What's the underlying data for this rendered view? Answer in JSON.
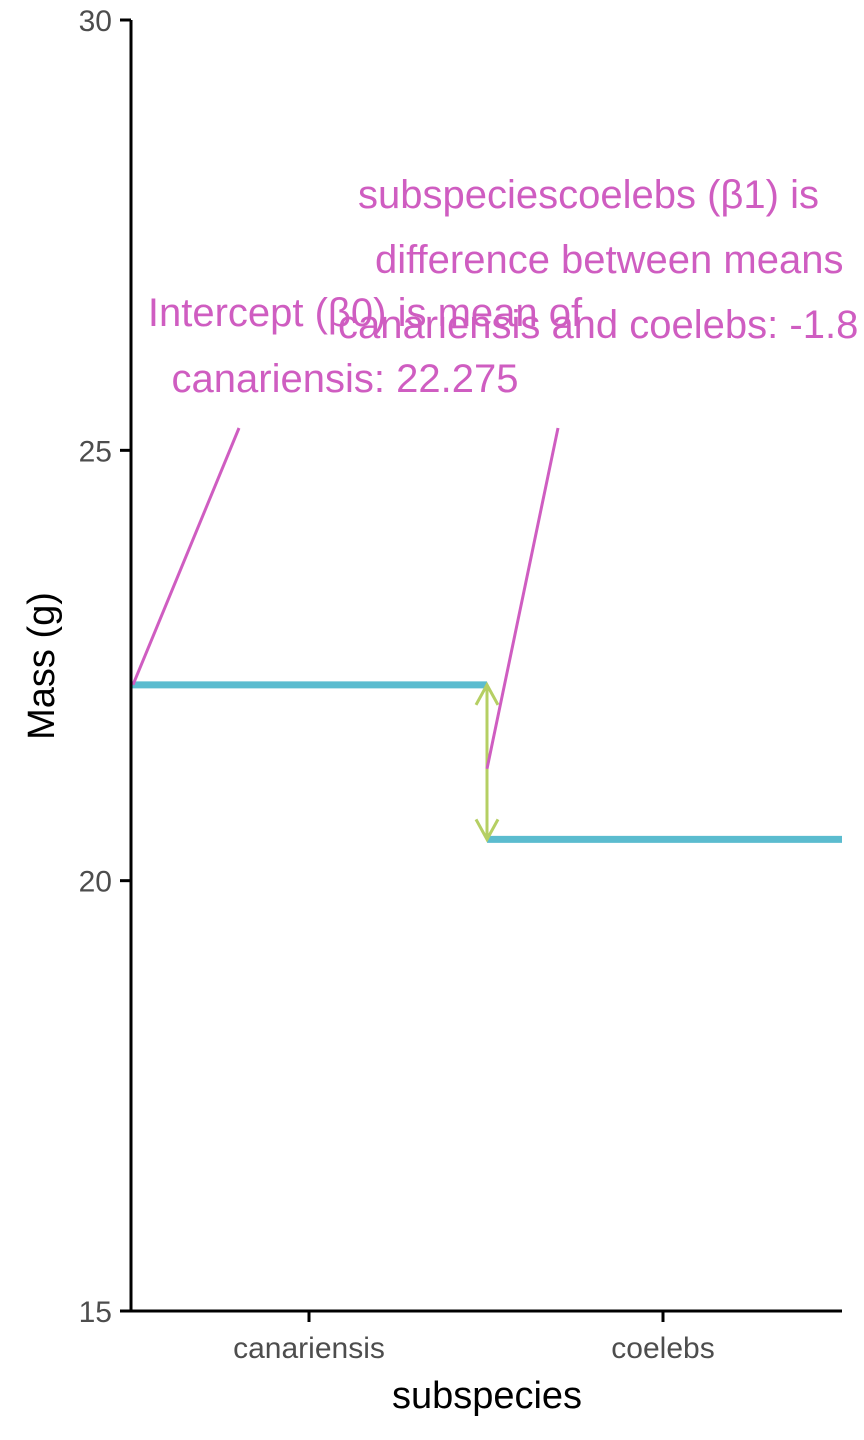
{
  "chart_data": {
    "type": "line",
    "xlabel": "subspecies",
    "ylabel": "Mass (g)",
    "categories": [
      "canariensis",
      "coelebs"
    ],
    "ylim": [
      15,
      30
    ],
    "y_ticks": [
      "15",
      "20",
      "25",
      "30"
    ],
    "series": [
      {
        "values": [
          22.275,
          20.48
        ]
      }
    ],
    "colors": {
      "mean_line": "#5bbccf",
      "annotation": "#cf5dc1",
      "difference_arrow": "#b5cf63",
      "axis": "#000000"
    },
    "annotations": {
      "intercept": {
        "lines": [
          "Intercept (β0) is mean of",
          "canariensis: 22.275"
        ],
        "target": {
          "category": "canariensis",
          "y": 22.275
        }
      },
      "slope": {
        "lines": [
          "subspeciescoelebs (β1) is",
          "difference between means",
          "canariensis and coelebs: -1.8"
        ],
        "target": {
          "category": "coelebs",
          "y": 21.3
        }
      }
    },
    "grid": false,
    "legend": "none"
  }
}
